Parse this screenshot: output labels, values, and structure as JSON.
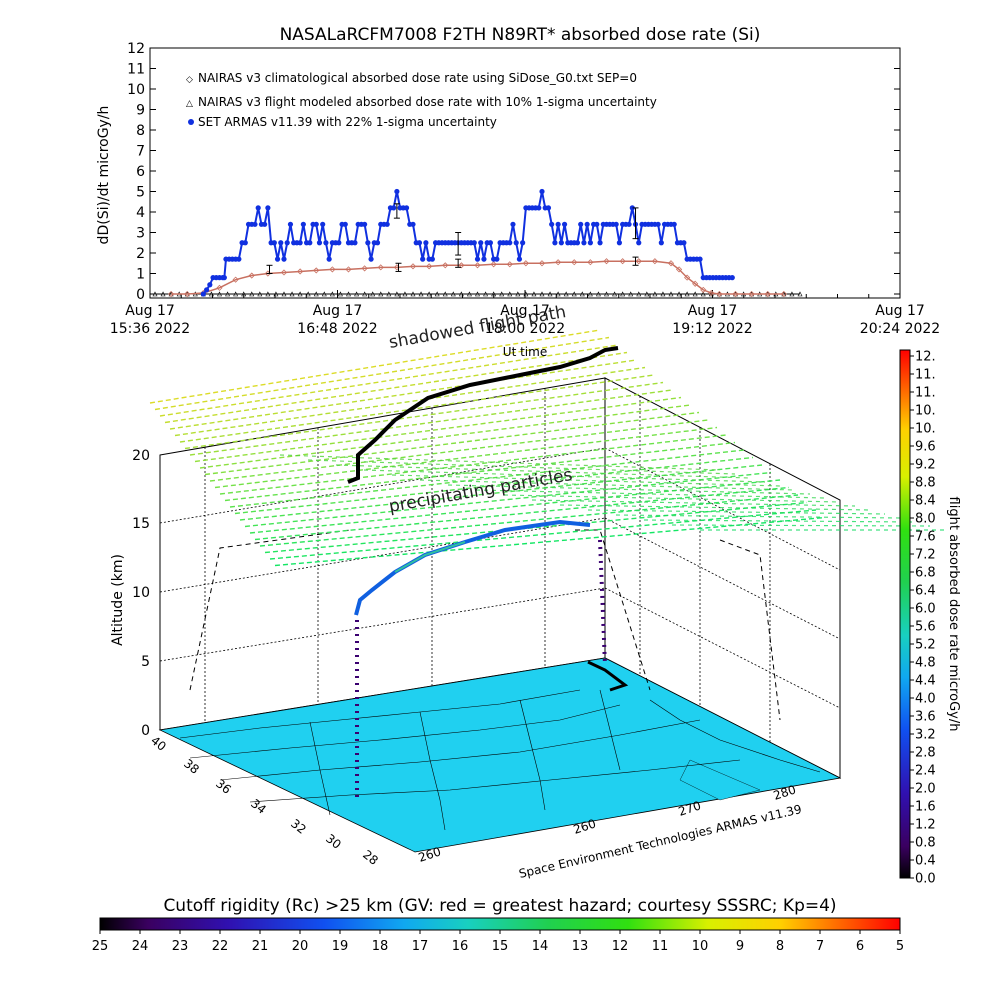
{
  "chart_data": [
    {
      "type": "line",
      "title": "NASALaRCFM7008  F2TH N89RT* absorbed dose rate (Si)",
      "ylabel": "dD(Si)/dt microGy/h",
      "ylim": [
        0,
        12
      ],
      "y_ticks": [
        "0",
        "1",
        "2",
        "3",
        "4",
        "5",
        "6",
        "7",
        "8",
        "9",
        "10",
        "11",
        "12"
      ],
      "x_ticks": [
        {
          "line1": "Aug 17",
          "line2": "15:36 2022"
        },
        {
          "line1": "Aug 17",
          "line2": "16:48 2022"
        },
        {
          "line1": "Aug 17",
          "line2": "18:00 2022"
        },
        {
          "line1": "Aug 17",
          "line2": "19:12 2022"
        },
        {
          "line1": "Aug 17",
          "line2": "20:24 2022"
        }
      ],
      "xlabel": "Ut time",
      "xlim_minutes": [
        0,
        288
      ],
      "legend": [
        {
          "label": "NAIRAS v3 climatological absorbed dose rate using SiDose_G0.txt SEP=0",
          "color": "#c87060",
          "marker": "diamond"
        },
        {
          "label": "NAIRAS v3 flight modeled absorbed dose rate with 10% 1-sigma uncertainty",
          "color": "#000000",
          "marker": "triangle"
        },
        {
          "label": "SET ARMAS v11.39 with 22% 1-sigma uncertainty",
          "color": "#1030e0",
          "marker": "circle"
        }
      ],
      "series": [
        {
          "name": "SET ARMAS v11.39 with 22% 1-sigma uncertainty",
          "color": "#1030e0",
          "points": [
            [
              30,
              0
            ],
            [
              32,
              0.2
            ],
            [
              34,
              0.45
            ],
            [
              36,
              0.8
            ],
            [
              38,
              0.8
            ],
            [
              40,
              0.8
            ],
            [
              42,
              0.8
            ],
            [
              43,
              0.8
            ],
            [
              44,
              1.7
            ],
            [
              46,
              1.7
            ],
            [
              48,
              1.7
            ],
            [
              50,
              1.7
            ],
            [
              52,
              1.7
            ],
            [
              54,
              2.5
            ],
            [
              56,
              2.5
            ],
            [
              58,
              3.4
            ],
            [
              60,
              3.4
            ],
            [
              62,
              3.4
            ],
            [
              64,
              4.2
            ],
            [
              66,
              3.4
            ],
            [
              68,
              3.4
            ],
            [
              70,
              4.2
            ],
            [
              72,
              2.5
            ],
            [
              74,
              2.5
            ],
            [
              76,
              1.7
            ],
            [
              78,
              2.5
            ],
            [
              80,
              1.7
            ],
            [
              82,
              2.5
            ],
            [
              84,
              3.4
            ],
            [
              86,
              2.5
            ],
            [
              88,
              2.5
            ],
            [
              90,
              2.5
            ],
            [
              92,
              3.4
            ],
            [
              94,
              2.5
            ],
            [
              96,
              2.5
            ],
            [
              98,
              3.4
            ],
            [
              100,
              3.4
            ],
            [
              102,
              2.5
            ],
            [
              104,
              3.4
            ],
            [
              106,
              2.5
            ],
            [
              108,
              1.7
            ],
            [
              110,
              2.5
            ],
            [
              112,
              2.5
            ],
            [
              114,
              2.5
            ],
            [
              116,
              3.4
            ],
            [
              118,
              3.4
            ],
            [
              120,
              2.5
            ],
            [
              122,
              2.5
            ],
            [
              124,
              2.5
            ],
            [
              126,
              3.4
            ],
            [
              128,
              3.4
            ],
            [
              130,
              3.4
            ],
            [
              132,
              2.5
            ],
            [
              134,
              1.7
            ],
            [
              136,
              2.5
            ],
            [
              138,
              2.5
            ],
            [
              140,
              3.4
            ],
            [
              142,
              3.4
            ],
            [
              144,
              3.4
            ],
            [
              146,
              4.2
            ],
            [
              148,
              4.2
            ],
            [
              150,
              5.0
            ],
            [
              152,
              4.2
            ],
            [
              154,
              4.2
            ],
            [
              156,
              4.2
            ],
            [
              158,
              3.4
            ],
            [
              160,
              3.4
            ],
            [
              162,
              2.5
            ],
            [
              164,
              2.5
            ],
            [
              166,
              1.7
            ],
            [
              168,
              2.5
            ],
            [
              170,
              1.7
            ],
            [
              172,
              1.7
            ],
            [
              174,
              2.5
            ],
            [
              176,
              2.5
            ],
            [
              178,
              2.5
            ],
            [
              180,
              2.5
            ],
            [
              182,
              2.5
            ],
            [
              184,
              2.5
            ],
            [
              186,
              2.5
            ],
            [
              188,
              2.5
            ],
            [
              190,
              2.5
            ],
            [
              192,
              2.5
            ],
            [
              194,
              2.5
            ],
            [
              196,
              2.5
            ],
            [
              198,
              2.5
            ],
            [
              200,
              1.7
            ],
            [
              202,
              2.5
            ],
            [
              204,
              1.7
            ],
            [
              206,
              2.5
            ],
            [
              208,
              2.5
            ],
            [
              210,
              1.7
            ],
            [
              212,
              1.7
            ],
            [
              214,
              2.5
            ],
            [
              216,
              2.5
            ],
            [
              218,
              2.5
            ],
            [
              220,
              2.5
            ],
            [
              222,
              3.4
            ],
            [
              224,
              2.5
            ],
            [
              226,
              1.7
            ],
            [
              228,
              2.5
            ],
            [
              230,
              4.2
            ],
            [
              232,
              4.2
            ],
            [
              234,
              4.2
            ],
            [
              236,
              4.2
            ],
            [
              238,
              4.2
            ],
            [
              240,
              5.0
            ],
            [
              242,
              4.2
            ],
            [
              244,
              4.2
            ],
            [
              246,
              3.4
            ],
            [
              248,
              2.5
            ],
            [
              250,
              3.4
            ],
            [
              252,
              2.5
            ],
            [
              254,
              3.4
            ],
            [
              256,
              2.5
            ],
            [
              258,
              2.5
            ],
            [
              260,
              2.5
            ],
            [
              262,
              2.5
            ],
            [
              264,
              3.4
            ],
            [
              266,
              2.5
            ],
            [
              268,
              3.4
            ],
            [
              270,
              2.5
            ],
            [
              272,
              3.4
            ],
            [
              274,
              3.4
            ],
            [
              276,
              2.5
            ],
            [
              278,
              3.4
            ],
            [
              280,
              3.4
            ],
            [
              282,
              3.4
            ],
            [
              284,
              3.4
            ],
            [
              286,
              3.4
            ],
            [
              288,
              2.5
            ],
            [
              290,
              3.4
            ],
            [
              292,
              3.4
            ],
            [
              294,
              3.4
            ],
            [
              296,
              4.2
            ],
            [
              298,
              3.4
            ],
            [
              300,
              2.5
            ],
            [
              302,
              3.4
            ],
            [
              304,
              3.4
            ],
            [
              306,
              3.4
            ],
            [
              308,
              3.4
            ],
            [
              310,
              3.4
            ],
            [
              312,
              3.4
            ],
            [
              314,
              2.5
            ],
            [
              316,
              3.4
            ],
            [
              318,
              3.4
            ],
            [
              320,
              3.4
            ],
            [
              322,
              3.4
            ],
            [
              324,
              2.5
            ],
            [
              326,
              2.5
            ],
            [
              328,
              2.5
            ],
            [
              330,
              1.7
            ],
            [
              332,
              1.7
            ],
            [
              334,
              1.7
            ],
            [
              336,
              1.7
            ],
            [
              338,
              1.7
            ],
            [
              340,
              0.8
            ],
            [
              342,
              0.8
            ],
            [
              344,
              0.8
            ],
            [
              346,
              0.8
            ],
            [
              348,
              0.8
            ],
            [
              350,
              0.8
            ],
            [
              352,
              0.8
            ],
            [
              354,
              0.8
            ],
            [
              356,
              0.8
            ],
            [
              358,
              0.8
            ]
          ]
        },
        {
          "name": "NAIRAS v3 climatological absorbed dose rate using SiDose_G0.txt SEP=0",
          "color": "#c87060",
          "points": [
            [
              10,
              0
            ],
            [
              20,
              0
            ],
            [
              30,
              0.05
            ],
            [
              40,
              0.3
            ],
            [
              50,
              0.7
            ],
            [
              60,
              0.9
            ],
            [
              70,
              1.0
            ],
            [
              80,
              1.05
            ],
            [
              90,
              1.1
            ],
            [
              100,
              1.15
            ],
            [
              110,
              1.2
            ],
            [
              120,
              1.2
            ],
            [
              130,
              1.25
            ],
            [
              140,
              1.3
            ],
            [
              150,
              1.3
            ],
            [
              160,
              1.35
            ],
            [
              170,
              1.35
            ],
            [
              180,
              1.4
            ],
            [
              190,
              1.4
            ],
            [
              200,
              1.4
            ],
            [
              210,
              1.45
            ],
            [
              220,
              1.45
            ],
            [
              230,
              1.5
            ],
            [
              240,
              1.5
            ],
            [
              250,
              1.55
            ],
            [
              260,
              1.55
            ],
            [
              270,
              1.55
            ],
            [
              280,
              1.6
            ],
            [
              290,
              1.6
            ],
            [
              300,
              1.6
            ],
            [
              310,
              1.6
            ],
            [
              320,
              1.5
            ],
            [
              325,
              1.2
            ],
            [
              330,
              0.8
            ],
            [
              335,
              0.5
            ],
            [
              340,
              0.2
            ],
            [
              345,
              0.05
            ],
            [
              350,
              0
            ],
            [
              360,
              0
            ],
            [
              370,
              0
            ],
            [
              380,
              0
            ],
            [
              390,
              0
            ]
          ]
        },
        {
          "name": "NAIRAS v3 flight modeled absorbed dose rate with 10% 1-sigma uncertainty",
          "color": "#000000",
          "points": [
            [
              0,
              0
            ],
            [
              400,
              0
            ]
          ]
        }
      ],
      "error_bars": [
        {
          "x": 71,
          "low": 1.0,
          "high": 1.4
        },
        {
          "x": 150,
          "low": 3.7,
          "high": 4.4
        },
        {
          "x": 151,
          "low": 1.1,
          "high": 1.5
        },
        {
          "x": 188,
          "low": 1.3,
          "high": 1.7
        },
        {
          "x": 188,
          "low": 1.9,
          "high": 3.0
        },
        {
          "x": 298,
          "low": 2.7,
          "high": 4.2
        },
        {
          "x": 298,
          "low": 1.4,
          "high": 1.8
        }
      ]
    },
    {
      "type": "3d-map",
      "zlabel": "Altitude (km)",
      "z_ticks": [
        "0",
        "5",
        "10",
        "15",
        "20"
      ],
      "lat_ticks": [
        "40",
        "38",
        "36",
        "34",
        "32",
        "30",
        "28"
      ],
      "lon_ticks": [
        "260",
        "270",
        "280"
      ],
      "lon_ticks_front": [
        "260"
      ],
      "annotations": {
        "shadowed": "shadowed flight path",
        "ut_time": "Ut time",
        "precip": "precipitating particles",
        "credit": "Space Environment Technologies ARMAS v11.39"
      },
      "colorbar": {
        "label": "flight absorbed dose rate microGy/h",
        "ticks": [
          "12.",
          "11.",
          "11.",
          "10.",
          "10.",
          "9.6",
          "9.2",
          "8.8",
          "8.4",
          "8.0",
          "7.6",
          "7.2",
          "6.8",
          "6.4",
          "6.0",
          "5.6",
          "5.2",
          "4.8",
          "4.4",
          "4.0",
          "3.6",
          "3.2",
          "2.8",
          "2.4",
          "2.0",
          "1.6",
          "1.2",
          "0.8",
          "0.4",
          "0.0"
        ]
      }
    },
    {
      "type": "colorbar",
      "title": "Cutoff rigidity (Rc) >25 km (GV: red = greatest hazard; courtesy SSSRC; Kp=4)",
      "ticks": [
        "25",
        "24",
        "23",
        "22",
        "21",
        "20",
        "19",
        "18",
        "17",
        "16",
        "15",
        "14",
        "13",
        "12",
        "11",
        "10",
        "9",
        "8",
        "7",
        "6",
        "5"
      ]
    }
  ]
}
